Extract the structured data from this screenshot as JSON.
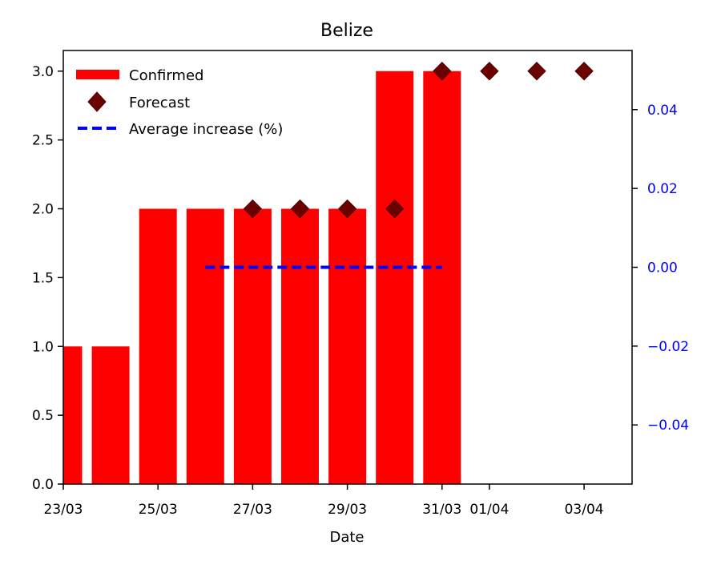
{
  "chart_data": {
    "type": "bar",
    "title": "Belize",
    "xlabel": "Date",
    "ylabel": "",
    "ylim": [
      0,
      3.15
    ],
    "y2lim": [
      -0.055,
      0.055
    ],
    "x_date_range": [
      "23/03",
      "05/04"
    ],
    "x_tick_labels": [
      "23/03",
      "25/03",
      "27/03",
      "29/03",
      "31/03",
      "01/04",
      "03/04"
    ],
    "y_ticks": [
      "0.0",
      "0.5",
      "1.0",
      "1.5",
      "2.0",
      "2.5",
      "3.0"
    ],
    "y2_ticks": [
      "−0.04",
      "−0.02",
      "0.00",
      "0.02",
      "0.04"
    ],
    "grid": false,
    "legend_position": "top-left",
    "series": [
      {
        "name": "Confirmed",
        "kind": "bar",
        "color": "#ff0000",
        "x": [
          "23/03",
          "24/03",
          "25/03",
          "26/03",
          "27/03",
          "28/03",
          "29/03",
          "30/03",
          "31/03"
        ],
        "values": [
          1,
          1,
          2,
          2,
          2,
          2,
          2,
          3,
          3
        ]
      },
      {
        "name": "Forecast",
        "kind": "scatter",
        "marker": "diamond",
        "color": "#6b0000",
        "x": [
          "27/03",
          "28/03",
          "29/03",
          "30/03",
          "31/03",
          "01/04",
          "02/04",
          "03/04"
        ],
        "values": [
          2,
          2,
          2,
          2,
          3,
          3,
          3,
          3
        ]
      },
      {
        "name": "Average increase (%)",
        "kind": "line",
        "style": "dashed",
        "axis": "right",
        "color": "#0000ff",
        "x": [
          "26/03",
          "31/03"
        ],
        "values": [
          0.0,
          0.0
        ]
      }
    ]
  }
}
